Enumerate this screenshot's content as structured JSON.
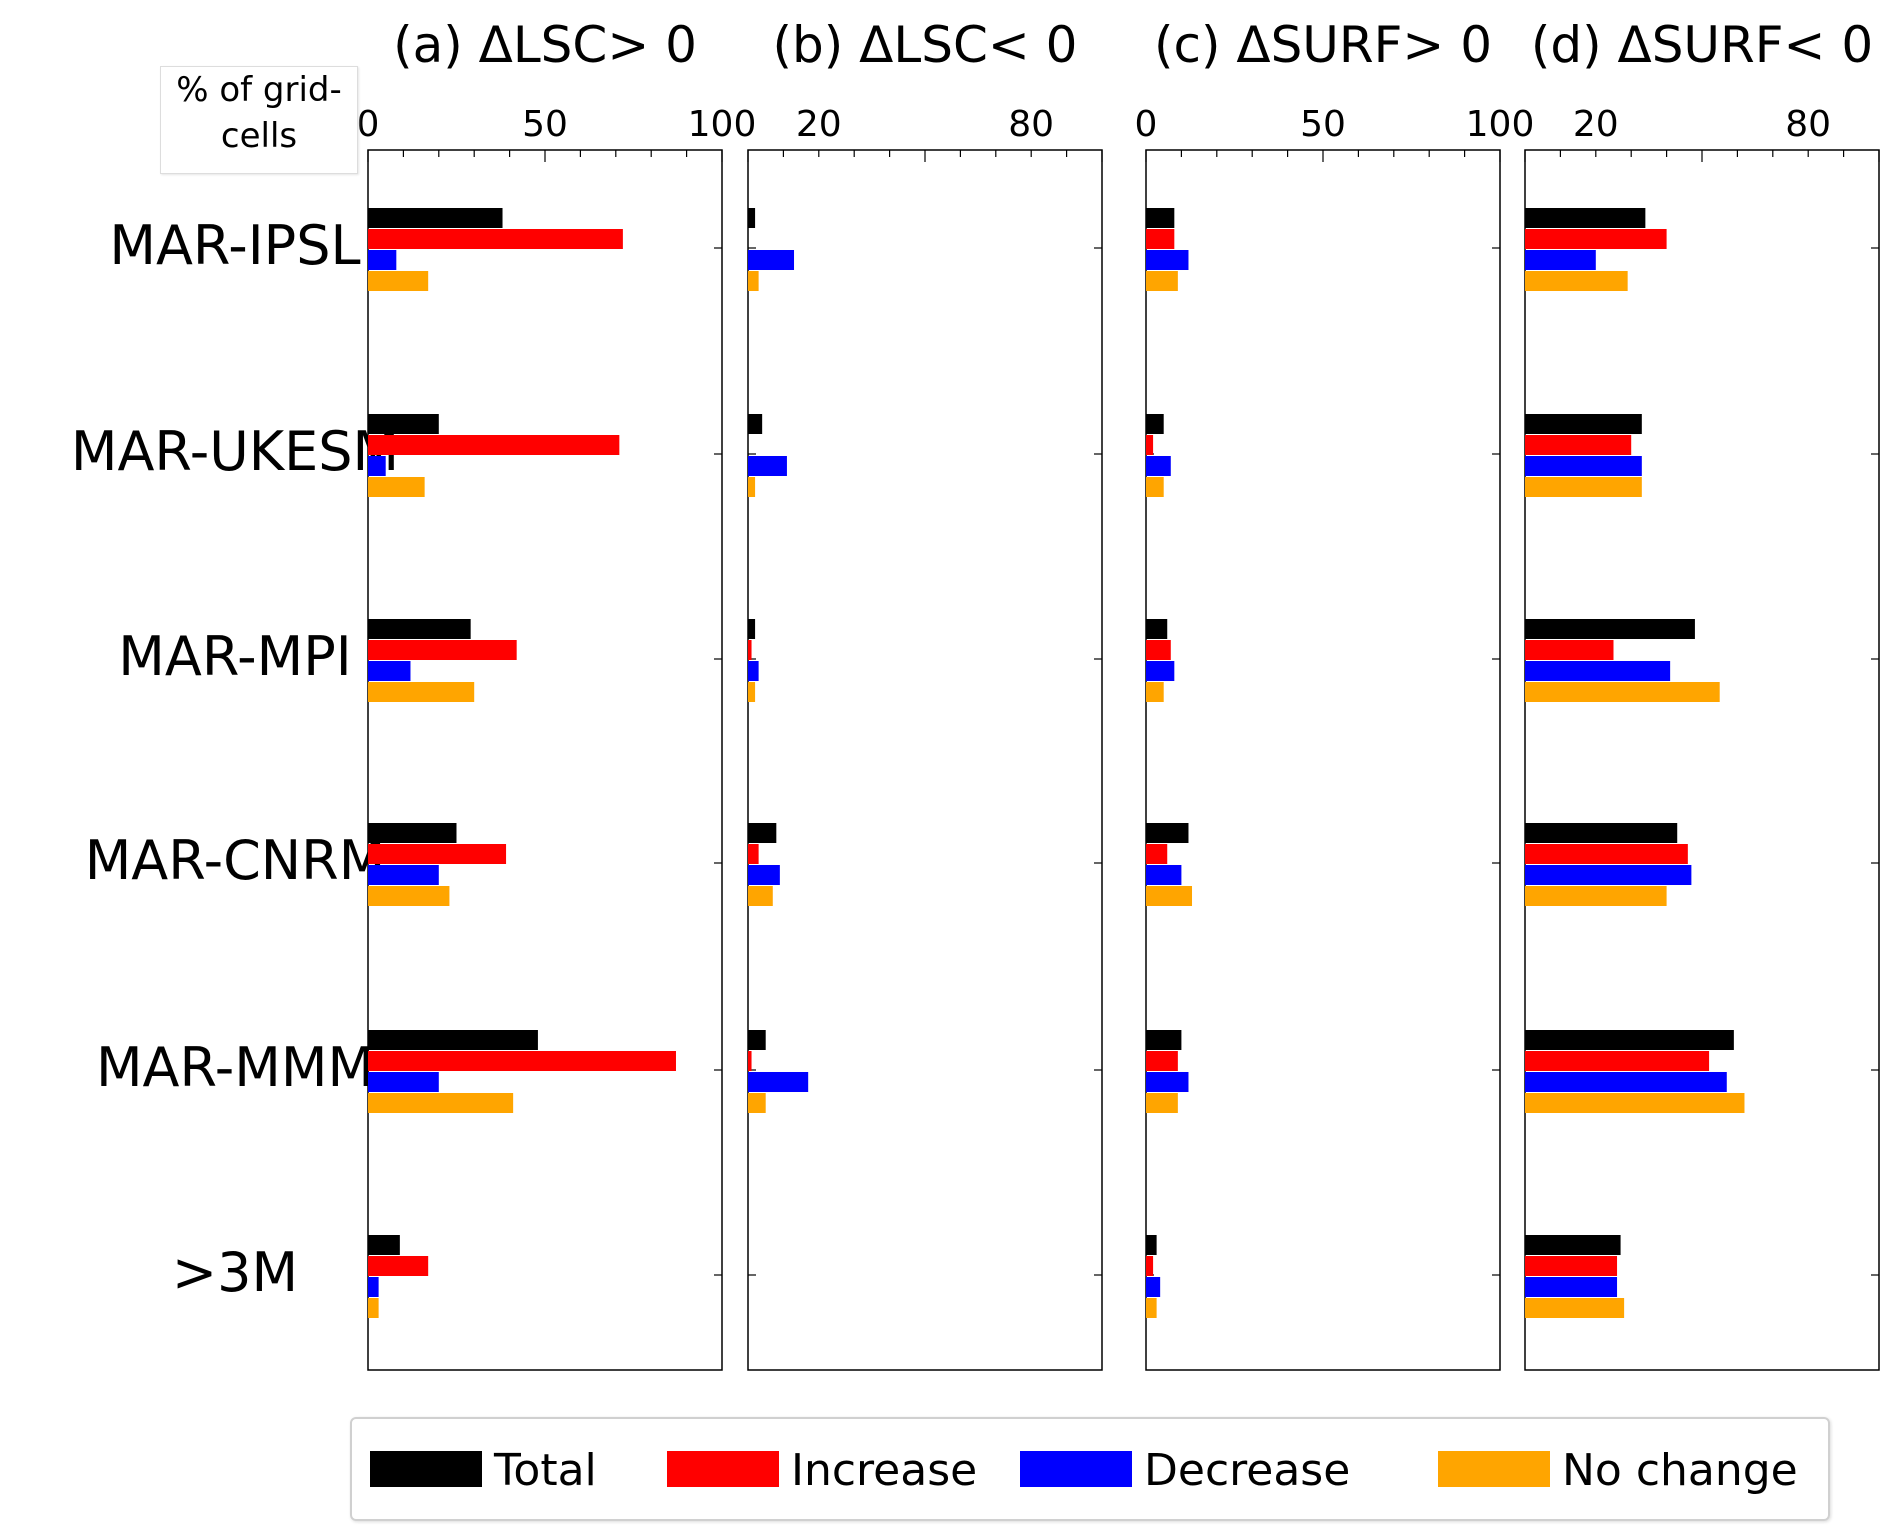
{
  "unit_box": {
    "line1": "% of grid-",
    "line2": "cells"
  },
  "legend": [
    {
      "label": "Total",
      "color": "#000000"
    },
    {
      "label": "Increase",
      "color": "#ff0000"
    },
    {
      "label": "Decrease",
      "color": "#0000ff"
    },
    {
      "label": "No change",
      "color": "#ffa500"
    }
  ],
  "chart_data": [
    {
      "type": "bar",
      "orientation": "horizontal",
      "title": "(a) ΔLSC> 0",
      "xlim": [
        0,
        100
      ],
      "xticks": [
        0,
        50,
        100
      ],
      "categories": [
        "MAR-IPSL",
        "MAR-UKESM",
        "MAR-MPI",
        "MAR-CNRM",
        "MAR-MMM",
        ">3M"
      ],
      "series": [
        {
          "name": "Total",
          "color": "#000000",
          "values": [
            38,
            20,
            29,
            25,
            48,
            9
          ]
        },
        {
          "name": "Increase",
          "color": "#ff0000",
          "values": [
            72,
            71,
            42,
            39,
            87,
            17
          ]
        },
        {
          "name": "Decrease",
          "color": "#0000ff",
          "values": [
            8,
            5,
            12,
            20,
            20,
            3
          ]
        },
        {
          "name": "No change",
          "color": "#ffa500",
          "values": [
            17,
            16,
            30,
            23,
            41,
            3
          ]
        }
      ]
    },
    {
      "type": "bar",
      "orientation": "horizontal",
      "title": "(b) ΔLSC< 0",
      "xlim": [
        0,
        100
      ],
      "xticks": [
        20,
        80
      ],
      "categories": [
        "MAR-IPSL",
        "MAR-UKESM",
        "MAR-MPI",
        "MAR-CNRM",
        "MAR-MMM",
        ">3M"
      ],
      "series": [
        {
          "name": "Total",
          "color": "#000000",
          "values": [
            2,
            4,
            2,
            8,
            5,
            0
          ]
        },
        {
          "name": "Increase",
          "color": "#ff0000",
          "values": [
            0,
            0,
            1,
            3,
            1,
            0
          ]
        },
        {
          "name": "Decrease",
          "color": "#0000ff",
          "values": [
            13,
            11,
            3,
            9,
            17,
            0
          ]
        },
        {
          "name": "No change",
          "color": "#ffa500",
          "values": [
            3,
            2,
            2,
            7,
            5,
            0
          ]
        }
      ]
    },
    {
      "type": "bar",
      "orientation": "horizontal",
      "title": "(c) ΔSURF> 0",
      "xlim": [
        0,
        100
      ],
      "xticks": [
        0,
        50,
        100
      ],
      "categories": [
        "MAR-IPSL",
        "MAR-UKESM",
        "MAR-MPI",
        "MAR-CNRM",
        "MAR-MMM",
        ">3M"
      ],
      "series": [
        {
          "name": "Total",
          "color": "#000000",
          "values": [
            8,
            5,
            6,
            12,
            10,
            3
          ]
        },
        {
          "name": "Increase",
          "color": "#ff0000",
          "values": [
            8,
            2,
            7,
            6,
            9,
            2
          ]
        },
        {
          "name": "Decrease",
          "color": "#0000ff",
          "values": [
            12,
            7,
            8,
            10,
            12,
            4
          ]
        },
        {
          "name": "No change",
          "color": "#ffa500",
          "values": [
            9,
            5,
            5,
            13,
            9,
            3
          ]
        }
      ]
    },
    {
      "type": "bar",
      "orientation": "horizontal",
      "title": "(d) ΔSURF< 0",
      "xlim": [
        0,
        100
      ],
      "xticks": [
        20,
        80
      ],
      "categories": [
        "MAR-IPSL",
        "MAR-UKESM",
        "MAR-MPI",
        "MAR-CNRM",
        "MAR-MMM",
        ">3M"
      ],
      "series": [
        {
          "name": "Total",
          "color": "#000000",
          "values": [
            34,
            33,
            48,
            43,
            59,
            27
          ]
        },
        {
          "name": "Increase",
          "color": "#ff0000",
          "values": [
            40,
            30,
            25,
            46,
            52,
            26
          ]
        },
        {
          "name": "Decrease",
          "color": "#0000ff",
          "values": [
            20,
            33,
            41,
            47,
            57,
            26
          ]
        },
        {
          "name": "No change",
          "color": "#ffa500",
          "values": [
            29,
            33,
            55,
            40,
            62,
            28
          ]
        }
      ]
    }
  ]
}
